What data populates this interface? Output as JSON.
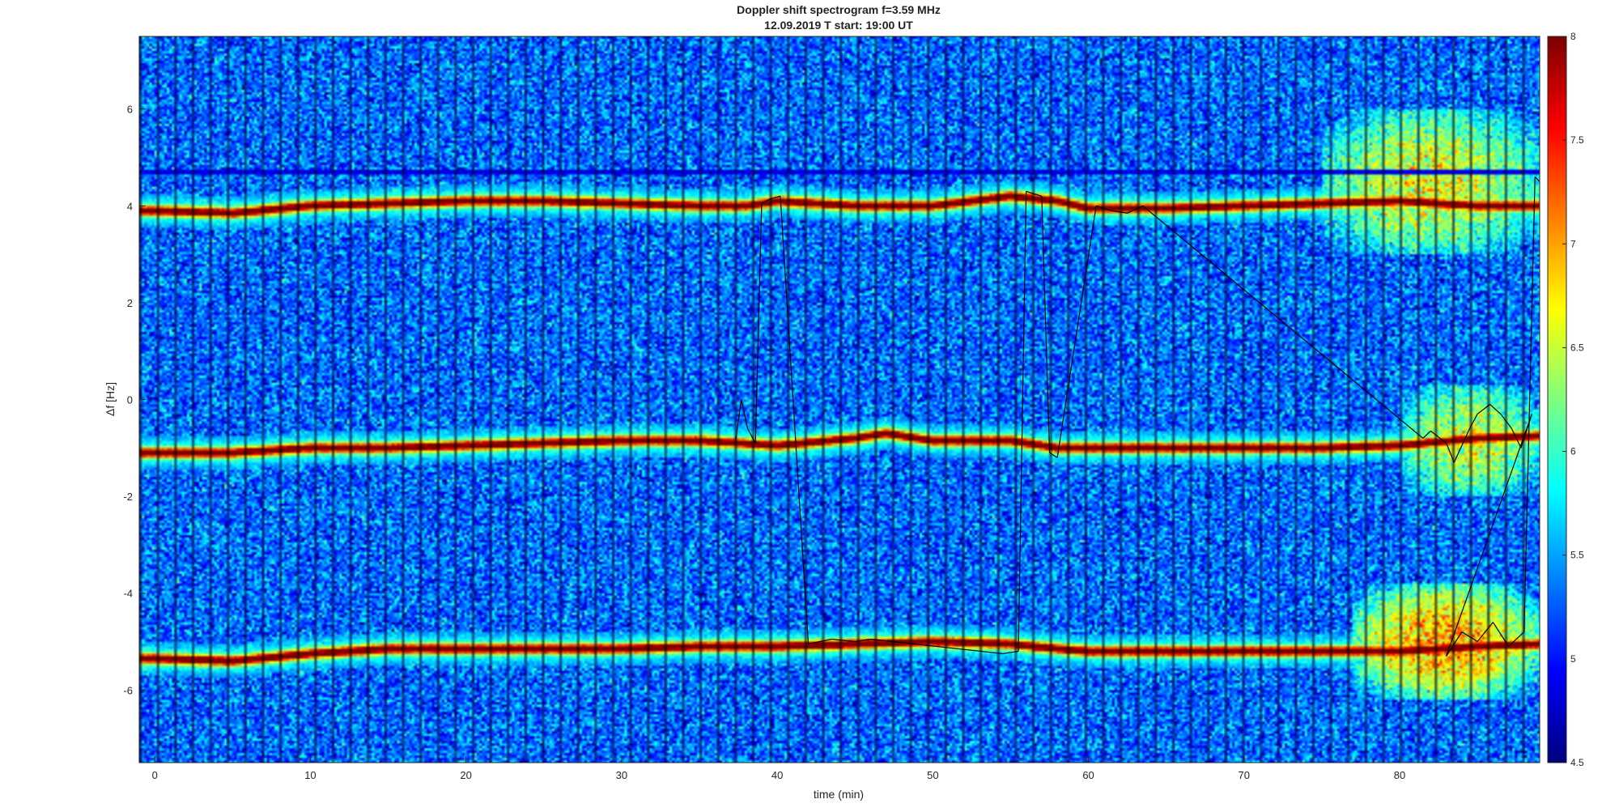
{
  "chart_data": {
    "type": "heatmap",
    "title": "Doppler shift spectrogram f=3.59 MHz",
    "subtitle": "12.09.2019   T start: 19:00 UT",
    "xlabel": "time (min)",
    "ylabel": "Δf [Hz]",
    "xlim": [
      -1,
      89
    ],
    "ylim": [
      -7.5,
      7.5
    ],
    "xticks": [
      0,
      10,
      20,
      30,
      40,
      50,
      60,
      70,
      80
    ],
    "yticks": [
      -6,
      -4,
      -2,
      0,
      2,
      4,
      6
    ],
    "colorbar": {
      "colormap": "jet",
      "clim": [
        4.5,
        8
      ],
      "ticks": [
        4.5,
        5,
        5.5,
        6,
        6.5,
        7,
        7.5,
        8
      ],
      "position": "right"
    },
    "background_level": 5.3,
    "traces": [
      {
        "peak_level": 7.8,
        "points": [
          [
            0,
            3.9
          ],
          [
            5,
            3.85
          ],
          [
            10,
            4.0
          ],
          [
            15,
            4.05
          ],
          [
            20,
            4.1
          ],
          [
            25,
            4.1
          ],
          [
            30,
            4.05
          ],
          [
            35,
            4.0
          ],
          [
            38,
            4.0
          ],
          [
            40,
            4.1
          ],
          [
            45,
            4.0
          ],
          [
            50,
            4.0
          ],
          [
            55,
            4.2
          ],
          [
            58,
            4.1
          ],
          [
            60,
            3.95
          ],
          [
            65,
            3.95
          ],
          [
            70,
            4.0
          ],
          [
            75,
            4.05
          ],
          [
            80,
            4.1
          ],
          [
            85,
            4.0
          ],
          [
            89,
            4.0
          ]
        ]
      },
      {
        "peak_level": 7.8,
        "points": [
          [
            0,
            -1.1
          ],
          [
            5,
            -1.1
          ],
          [
            10,
            -1.0
          ],
          [
            15,
            -1.0
          ],
          [
            20,
            -0.95
          ],
          [
            25,
            -0.9
          ],
          [
            30,
            -0.85
          ],
          [
            35,
            -0.85
          ],
          [
            40,
            -0.95
          ],
          [
            45,
            -0.8
          ],
          [
            47,
            -0.7
          ],
          [
            50,
            -0.85
          ],
          [
            55,
            -0.85
          ],
          [
            58,
            -1.0
          ],
          [
            60,
            -1.0
          ],
          [
            65,
            -1.0
          ],
          [
            70,
            -1.0
          ],
          [
            75,
            -1.0
          ],
          [
            80,
            -0.95
          ],
          [
            85,
            -0.8
          ],
          [
            89,
            -0.75
          ]
        ]
      },
      {
        "peak_level": 7.9,
        "points": [
          [
            0,
            -5.35
          ],
          [
            5,
            -5.4
          ],
          [
            10,
            -5.25
          ],
          [
            15,
            -5.15
          ],
          [
            20,
            -5.15
          ],
          [
            25,
            -5.15
          ],
          [
            30,
            -5.15
          ],
          [
            35,
            -5.1
          ],
          [
            40,
            -5.1
          ],
          [
            45,
            -5.05
          ],
          [
            50,
            -5.0
          ],
          [
            55,
            -5.05
          ],
          [
            58,
            -5.15
          ],
          [
            60,
            -5.2
          ],
          [
            65,
            -5.2
          ],
          [
            70,
            -5.2
          ],
          [
            75,
            -5.2
          ],
          [
            80,
            -5.2
          ],
          [
            85,
            -5.1
          ],
          [
            89,
            -5.05
          ]
        ]
      }
    ],
    "diffuse_regions": [
      {
        "x": [
          75,
          89
        ],
        "y": [
          3.0,
          6.0
        ],
        "level": 6.6
      },
      {
        "x": [
          80,
          89
        ],
        "y": [
          -2.0,
          0.3
        ],
        "level": 6.5
      },
      {
        "x": [
          77,
          89
        ],
        "y": [
          -6.2,
          -3.8
        ],
        "level": 7.0
      }
    ],
    "dark_band": {
      "y": 4.7,
      "level": 4.7
    },
    "overlay_line": {
      "color": "#000000",
      "points": [
        [
          37.3,
          -0.9
        ],
        [
          37.7,
          0.0
        ],
        [
          38.1,
          -0.6
        ],
        [
          38.6,
          -0.9
        ],
        [
          39.0,
          4.05
        ],
        [
          39.6,
          4.15
        ],
        [
          40.2,
          4.2
        ],
        [
          42.0,
          -5.05
        ],
        [
          43.5,
          -4.95
        ],
        [
          45.0,
          -5.0
        ],
        [
          46.0,
          -4.95
        ],
        [
          54.5,
          -5.25
        ],
        [
          55.5,
          -5.2
        ],
        [
          56.0,
          4.3
        ],
        [
          57.0,
          4.2
        ],
        [
          57.5,
          -1.1
        ],
        [
          58.0,
          -1.2
        ],
        [
          60.5,
          4.0
        ],
        [
          61.5,
          3.9
        ],
        [
          62.5,
          3.85
        ],
        [
          63.5,
          4.0
        ],
        [
          81.5,
          -0.8
        ],
        [
          82.0,
          -0.65
        ],
        [
          83.0,
          -0.9
        ],
        [
          83.5,
          -1.3
        ],
        [
          84.5,
          -0.6
        ],
        [
          85.0,
          -0.3
        ],
        [
          85.8,
          -0.1
        ],
        [
          86.5,
          -0.3
        ],
        [
          87.2,
          -0.6
        ],
        [
          87.8,
          -1.0
        ],
        [
          88.5,
          -0.3
        ],
        [
          83.0,
          -5.3
        ],
        [
          84.0,
          -4.8
        ],
        [
          85.0,
          -5.0
        ],
        [
          86.0,
          -4.6
        ],
        [
          87.0,
          -5.1
        ],
        [
          88.0,
          -4.8
        ],
        [
          88.7,
          4.6
        ],
        [
          89.0,
          4.5
        ]
      ]
    },
    "grid": false
  }
}
